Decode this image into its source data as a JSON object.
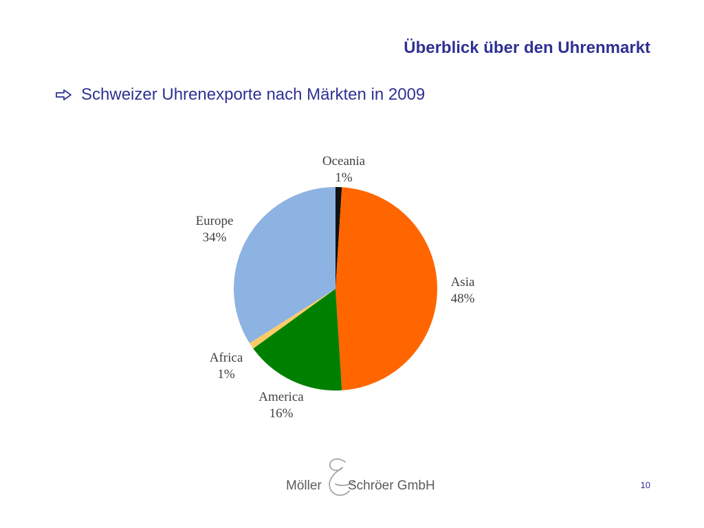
{
  "slide": {
    "title": "Überblick über den Uhrenmarkt",
    "bullet_text": "Schweizer Uhrenexporte nach Märkten in 2009",
    "page_number": "10"
  },
  "logo": {
    "left_text": "Möller",
    "right_text": "Schröer GmbH"
  },
  "chart_data": {
    "type": "pie",
    "title": "",
    "slices": [
      {
        "name": "Oceania",
        "value": 1,
        "label": "1%",
        "color": "#111111"
      },
      {
        "name": "Asia",
        "value": 48,
        "label": "48%",
        "color": "#ff6600"
      },
      {
        "name": "America",
        "value": 16,
        "label": "16%",
        "color": "#008000"
      },
      {
        "name": "Africa",
        "value": 1,
        "label": "1%",
        "color": "#ffcc66"
      },
      {
        "name": "Europe",
        "value": 34,
        "label": "34%",
        "color": "#8db3e2"
      }
    ]
  }
}
